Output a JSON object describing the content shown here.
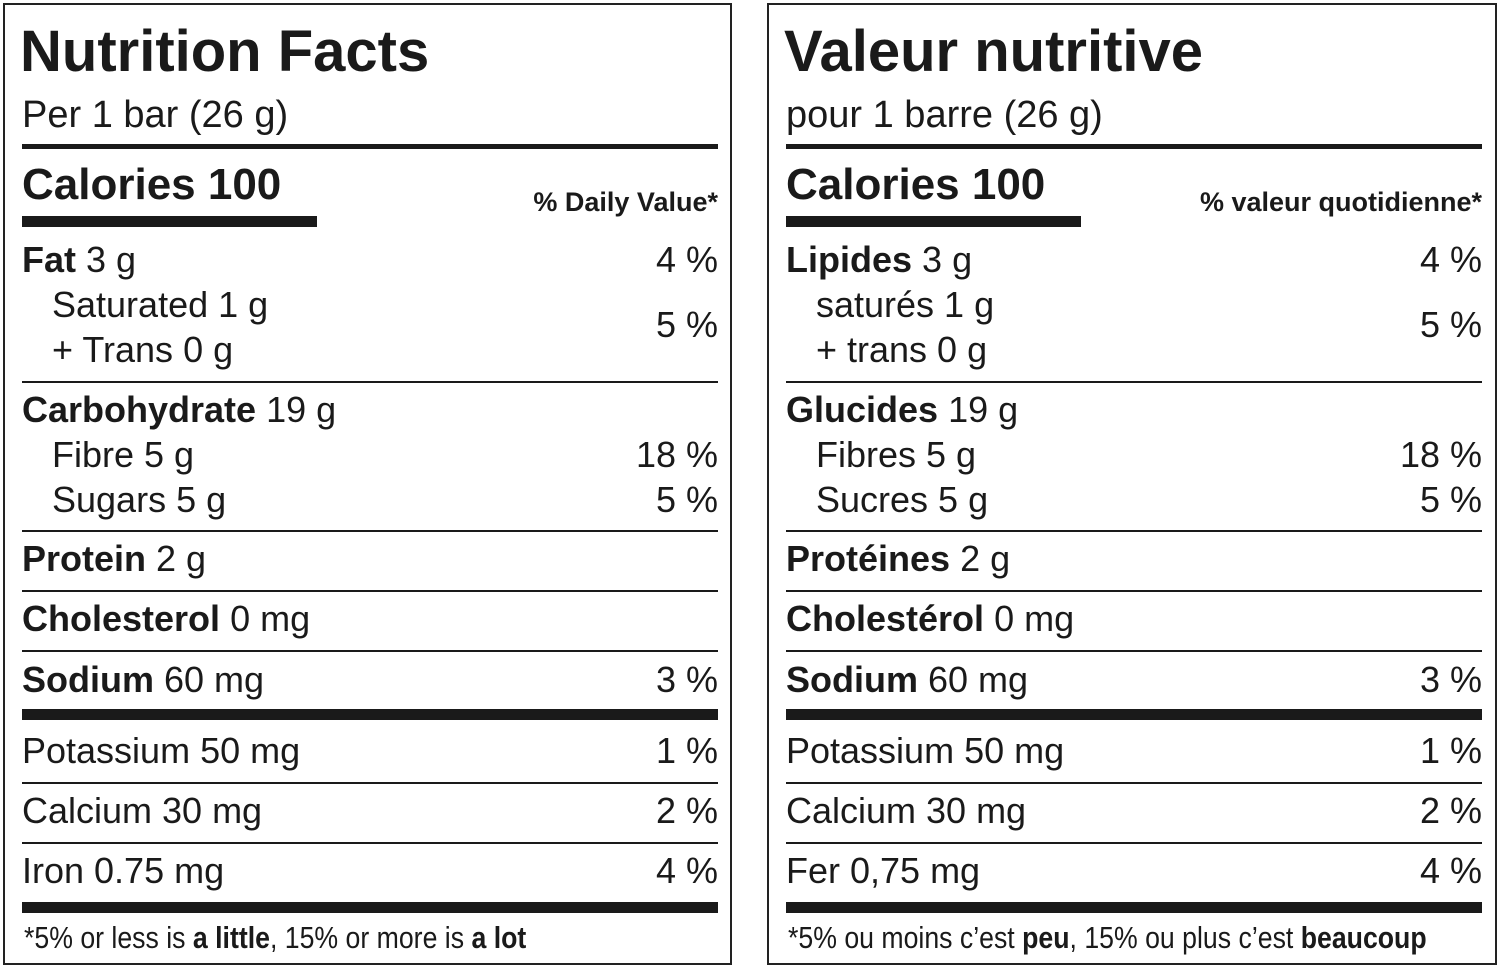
{
  "panels": [
    {
      "title": "Nutrition Facts",
      "subtitle": "Per 1 bar (26 g)",
      "calories_label": "Calories 100",
      "dv_header": "% Daily Value*",
      "fat": {
        "label": "Fat",
        "amount": "3 g",
        "dv": "4 %"
      },
      "saturated": {
        "label": "Saturated 1 g"
      },
      "trans": {
        "label": "+ Trans 0 g"
      },
      "sat_trans_dv": "5 %",
      "carbohydrate": {
        "label": "Carbohydrate",
        "amount": "19 g"
      },
      "fibre": {
        "label": "Fibre 5 g",
        "dv": "18 %"
      },
      "sugars": {
        "label": "Sugars 5 g",
        "dv": "5 %"
      },
      "protein": {
        "label": "Protein",
        "amount": "2 g"
      },
      "cholesterol": {
        "label": "Cholesterol",
        "amount": "0 mg"
      },
      "sodium": {
        "label": "Sodium",
        "amount": "60 mg",
        "dv": "3 %"
      },
      "potassium": {
        "label": "Potassium 50 mg",
        "dv": "1 %"
      },
      "calcium": {
        "label": "Calcium 30 mg",
        "dv": "2 %"
      },
      "iron": {
        "label": "Iron 0.75 mg",
        "dv": "4 %"
      },
      "footer": {
        "p1": "*5% or less is ",
        "b1": "a little",
        "p2": ", 15% or more is ",
        "b2": "a lot"
      }
    },
    {
      "title": "Valeur nutritive",
      "subtitle": "pour 1 barre (26 g)",
      "calories_label": "Calories 100",
      "dv_header": "% valeur quotidienne*",
      "fat": {
        "label": "Lipides",
        "amount": "3 g",
        "dv": "4 %"
      },
      "saturated": {
        "label": "saturés 1 g"
      },
      "trans": {
        "label": "+ trans 0 g"
      },
      "sat_trans_dv": "5 %",
      "carbohydrate": {
        "label": "Glucides",
        "amount": "19 g"
      },
      "fibre": {
        "label": "Fibres 5 g",
        "dv": "18 %"
      },
      "sugars": {
        "label": "Sucres 5 g",
        "dv": "5 %"
      },
      "protein": {
        "label": "Protéines",
        "amount": "2 g"
      },
      "cholesterol": {
        "label": "Cholestérol",
        "amount": "0 mg"
      },
      "sodium": {
        "label": "Sodium",
        "amount": "60 mg",
        "dv": "3 %"
      },
      "potassium": {
        "label": "Potassium 50 mg",
        "dv": "1 %"
      },
      "calcium": {
        "label": "Calcium 30 mg",
        "dv": "2 %"
      },
      "iron": {
        "label": "Fer 0,75 mg",
        "dv": "4 %"
      },
      "footer": {
        "p1": "*5% ou moins c’est ",
        "b1": "peu",
        "p2": ", 15% ou plus c’est ",
        "b2": "beaucoup"
      }
    }
  ]
}
